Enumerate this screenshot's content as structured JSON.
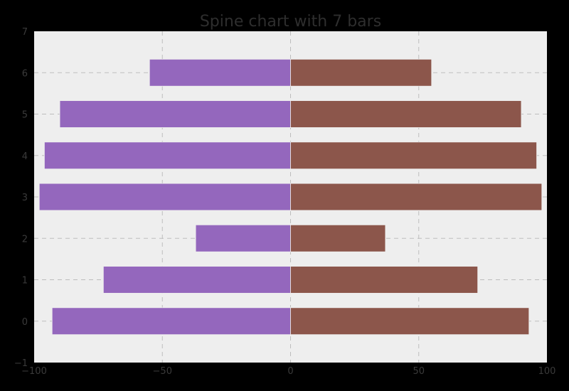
{
  "chart_data": {
    "type": "bar",
    "orientation": "horizontal",
    "title": "Spine chart with 7 bars",
    "xlabel": "",
    "ylabel": "",
    "categories": [
      0,
      1,
      2,
      3,
      4,
      5,
      6
    ],
    "series": [
      {
        "values": [
          -93,
          -73,
          -37,
          -98,
          -96,
          -90,
          -55
        ],
        "color": "#9467bd"
      },
      {
        "values": [
          93,
          73,
          37,
          98,
          96,
          90,
          55
        ],
        "color": "#8c564b"
      }
    ],
    "xlim": [
      -100,
      100
    ],
    "ylim": [
      -1,
      7
    ],
    "x_ticks": [
      "−100",
      "−50",
      "0",
      "50",
      "100"
    ],
    "y_ticks": [
      "−1",
      "0",
      "1",
      "2",
      "3",
      "4",
      "5",
      "6",
      "7"
    ],
    "grid": true,
    "background_color": "#eeeeee",
    "figure_color": "#000000"
  }
}
